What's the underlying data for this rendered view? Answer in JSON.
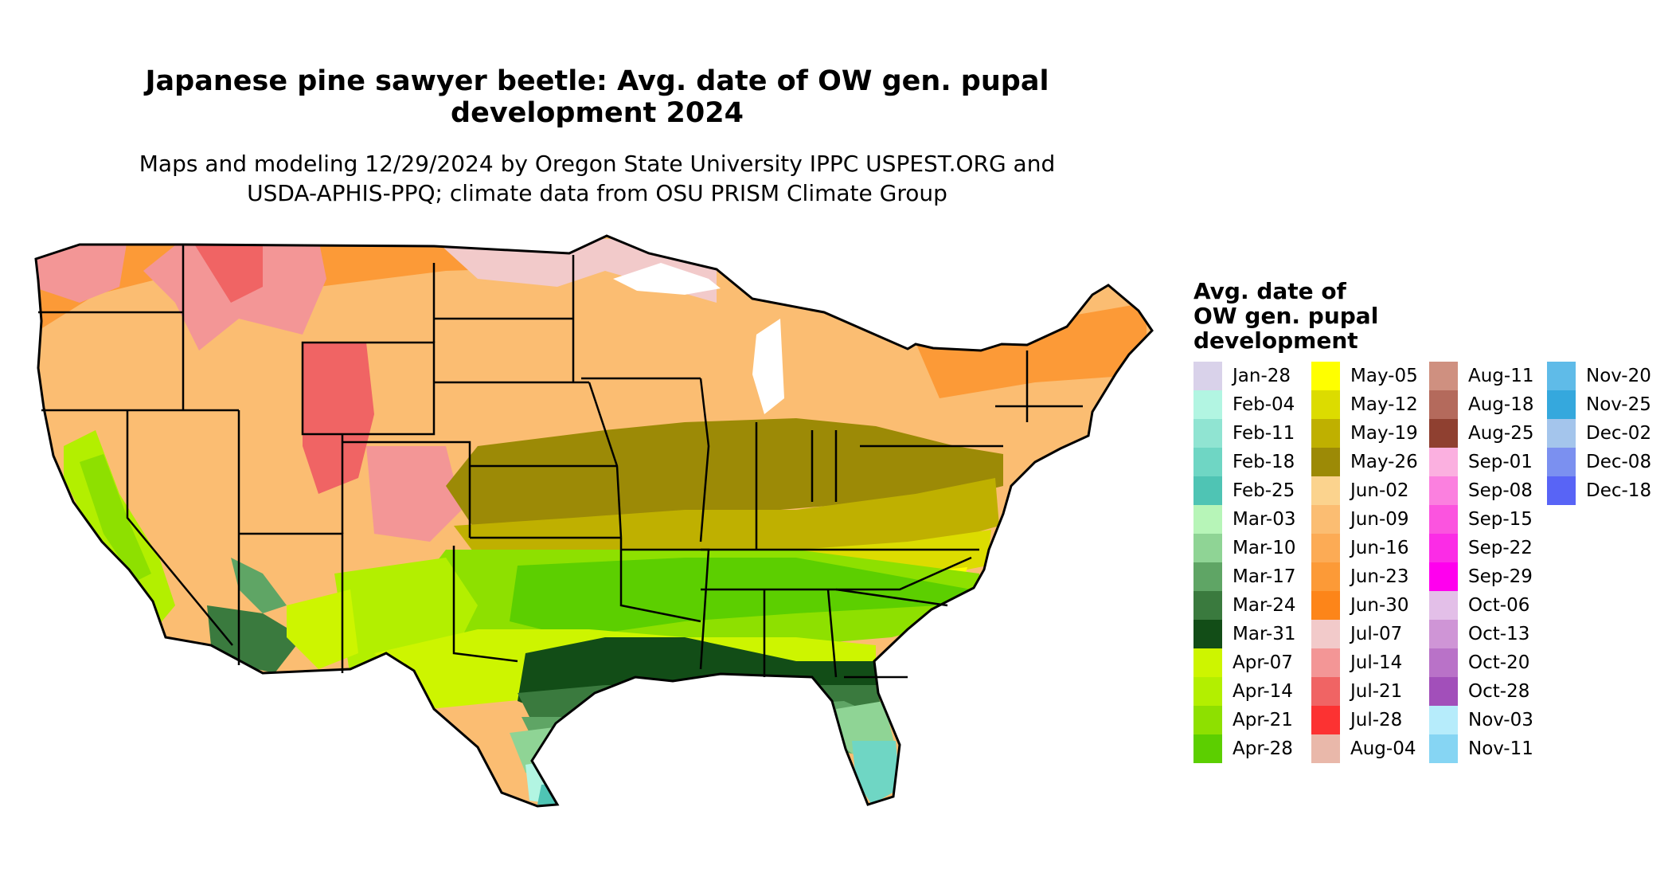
{
  "title": {
    "line1": "Japanese pine sawyer beetle: Avg. date of OW gen. pupal",
    "line2": "development 2024"
  },
  "subtitle": {
    "line1": "Maps and modeling 12/29/2024 by Oregon State University IPPC USPEST.ORG and",
    "line2": "USDA-APHIS-PPQ; climate data from OSU PRISM Climate Group"
  },
  "legend": {
    "title_lines": [
      "Avg. date of",
      "OW gen. pupal",
      "development"
    ],
    "items": [
      {
        "label": "Jan-28",
        "color": "#d9d2ea"
      },
      {
        "label": "Feb-04",
        "color": "#b2f5e2"
      },
      {
        "label": "Feb-11",
        "color": "#90e4d2"
      },
      {
        "label": "Feb-18",
        "color": "#6fd6c4"
      },
      {
        "label": "Feb-25",
        "color": "#4fc4b4"
      },
      {
        "label": "Mar-03",
        "color": "#b7f5b8"
      },
      {
        "label": "Mar-10",
        "color": "#8fd495"
      },
      {
        "label": "Mar-17",
        "color": "#5fa565"
      },
      {
        "label": "Mar-24",
        "color": "#3a7a3e"
      },
      {
        "label": "Mar-31",
        "color": "#124d17"
      },
      {
        "label": "Apr-07",
        "color": "#cdf500"
      },
      {
        "label": "Apr-14",
        "color": "#b3ef00"
      },
      {
        "label": "Apr-21",
        "color": "#8ee000"
      },
      {
        "label": "Apr-28",
        "color": "#5ccf00"
      },
      {
        "label": "May-05",
        "color": "#ffff00"
      },
      {
        "label": "May-12",
        "color": "#dcdc00"
      },
      {
        "label": "May-19",
        "color": "#bfb000"
      },
      {
        "label": "May-26",
        "color": "#9c8a06"
      },
      {
        "label": "Jun-02",
        "color": "#fbd38e"
      },
      {
        "label": "Jun-09",
        "color": "#fbbd72"
      },
      {
        "label": "Jun-16",
        "color": "#fcab55"
      },
      {
        "label": "Jun-23",
        "color": "#fc9a37"
      },
      {
        "label": "Jun-30",
        "color": "#fd8519"
      },
      {
        "label": "Jul-07",
        "color": "#f2caca"
      },
      {
        "label": "Jul-14",
        "color": "#f39696"
      },
      {
        "label": "Jul-21",
        "color": "#f06464"
      },
      {
        "label": "Jul-28",
        "color": "#fc3232"
      },
      {
        "label": "Aug-04",
        "color": "#e9b8aa"
      },
      {
        "label": "Aug-11",
        "color": "#cf9080"
      },
      {
        "label": "Aug-18",
        "color": "#b46a5c"
      },
      {
        "label": "Aug-25",
        "color": "#8f4030"
      },
      {
        "label": "Sep-01",
        "color": "#fbb0e0"
      },
      {
        "label": "Sep-08",
        "color": "#fb80df"
      },
      {
        "label": "Sep-15",
        "color": "#fb54df"
      },
      {
        "label": "Sep-22",
        "color": "#fb2ce6"
      },
      {
        "label": "Sep-29",
        "color": "#ff00ee"
      },
      {
        "label": "Oct-06",
        "color": "#e3bfe8"
      },
      {
        "label": "Oct-13",
        "color": "#cf95d6"
      },
      {
        "label": "Oct-20",
        "color": "#b972c8"
      },
      {
        "label": "Oct-28",
        "color": "#a24fba"
      },
      {
        "label": "Nov-03",
        "color": "#b6ecfb"
      },
      {
        "label": "Nov-11",
        "color": "#86d5f3"
      },
      {
        "label": "Nov-20",
        "color": "#5fbbe8"
      },
      {
        "label": "Nov-25",
        "color": "#35a8dd"
      },
      {
        "label": "Dec-02",
        "color": "#a4c5ec"
      },
      {
        "label": "Dec-08",
        "color": "#7b90f0"
      },
      {
        "label": "Dec-18",
        "color": "#5864f6"
      }
    ]
  }
}
